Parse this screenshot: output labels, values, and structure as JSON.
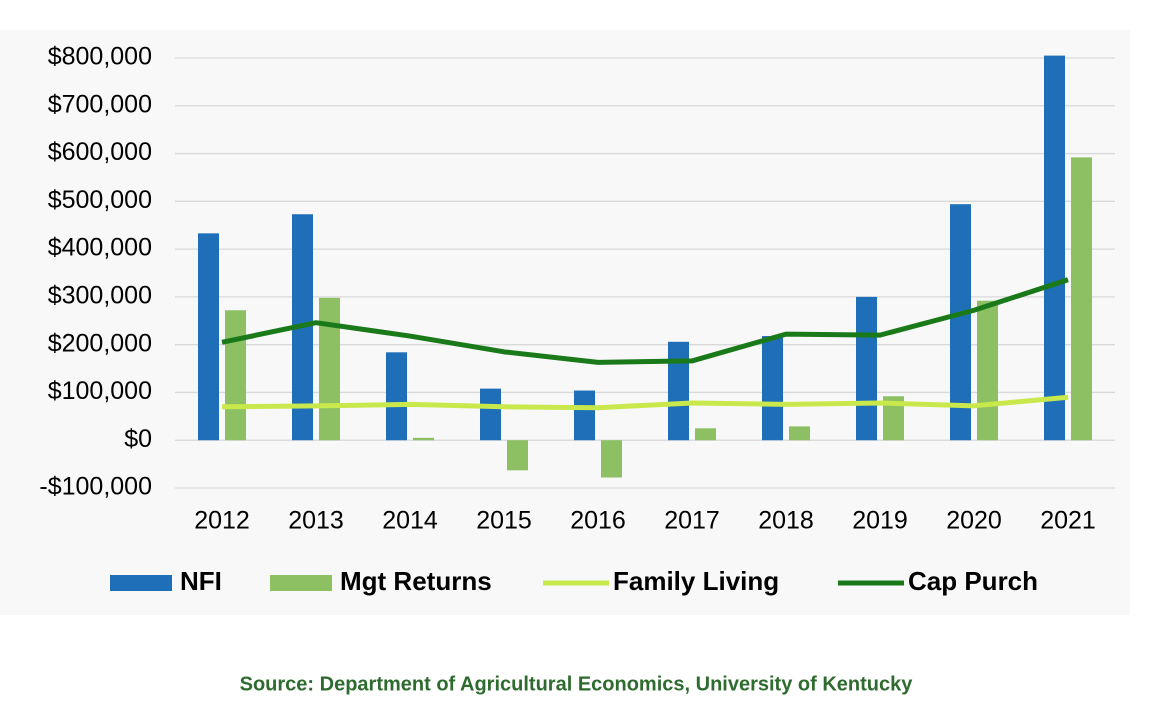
{
  "chart_data": {
    "type": "bar",
    "source": "Source: Department of Agricultural Economics, University of Kentucky",
    "categories": [
      "2012",
      "2013",
      "2014",
      "2015",
      "2016",
      "2017",
      "2018",
      "2019",
      "2020",
      "2021"
    ],
    "series": [
      {
        "name": "NFI",
        "type": "bar",
        "color": "#1f6fb8",
        "values": [
          433000,
          473000,
          184000,
          108000,
          104000,
          206000,
          218000,
          300000,
          494000,
          805000
        ]
      },
      {
        "name": "Mgt Returns",
        "type": "bar",
        "color": "#8cc063",
        "values": [
          272000,
          298000,
          5000,
          -63000,
          -78000,
          25000,
          29000,
          92000,
          292000,
          592000
        ]
      },
      {
        "name": "Family Living",
        "type": "line",
        "color": "#c8e84c",
        "values": [
          70000,
          72000,
          75000,
          70000,
          68000,
          78000,
          75000,
          78000,
          72000,
          90000
        ]
      },
      {
        "name": "Cap Purch",
        "type": "line",
        "color": "#1a7a1a",
        "values": [
          205000,
          246000,
          218000,
          185000,
          163000,
          166000,
          222000,
          220000,
          272000,
          336000
        ]
      }
    ],
    "ylim": [
      -100000,
      800000
    ],
    "yticks": [
      {
        "value": -100000,
        "label": "-$100,000"
      },
      {
        "value": 0,
        "label": "$0"
      },
      {
        "value": 100000,
        "label": "$100,000"
      },
      {
        "value": 200000,
        "label": "$200,000"
      },
      {
        "value": 300000,
        "label": "$300,000"
      },
      {
        "value": 400000,
        "label": "$400,000"
      },
      {
        "value": 500000,
        "label": "$500,000"
      },
      {
        "value": 600000,
        "label": "$600,000"
      },
      {
        "value": 700000,
        "label": "$700,000"
      },
      {
        "value": 800000,
        "label": "$800,000"
      }
    ],
    "grid": true,
    "legend": "bottom"
  }
}
